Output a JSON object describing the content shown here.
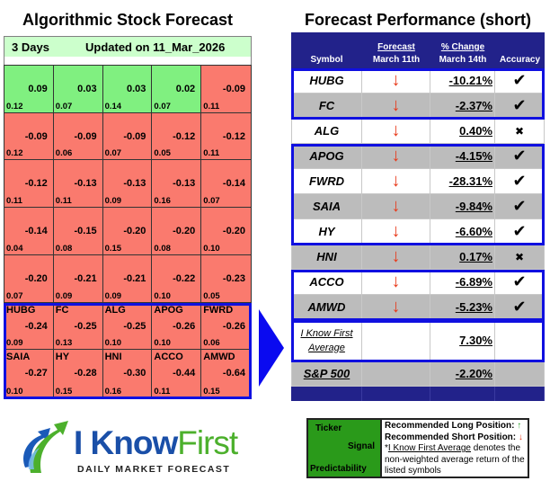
{
  "left_panel": {
    "title": "Algorithmic Stock Forecast",
    "horizon": "3 Days",
    "updated": "Updated on 11_Mar_2026",
    "cells": [
      {
        "ticker": "",
        "signal": "0.09",
        "pred": "0.12",
        "color": "pos"
      },
      {
        "ticker": "",
        "signal": "0.03",
        "pred": "0.07",
        "color": "pos"
      },
      {
        "ticker": "",
        "signal": "0.03",
        "pred": "0.14",
        "color": "pos"
      },
      {
        "ticker": "",
        "signal": "0.02",
        "pred": "0.07",
        "color": "pos"
      },
      {
        "ticker": "",
        "signal": "-0.09",
        "pred": "0.11",
        "color": "neg"
      },
      {
        "ticker": "",
        "signal": "-0.09",
        "pred": "0.12",
        "color": "neg"
      },
      {
        "ticker": "",
        "signal": "-0.09",
        "pred": "0.06",
        "color": "neg"
      },
      {
        "ticker": "",
        "signal": "-0.09",
        "pred": "0.07",
        "color": "neg"
      },
      {
        "ticker": "",
        "signal": "-0.12",
        "pred": "0.05",
        "color": "neg"
      },
      {
        "ticker": "",
        "signal": "-0.12",
        "pred": "0.11",
        "color": "neg"
      },
      {
        "ticker": "",
        "signal": "-0.12",
        "pred": "0.11",
        "color": "neg"
      },
      {
        "ticker": "",
        "signal": "-0.13",
        "pred": "0.11",
        "color": "neg"
      },
      {
        "ticker": "",
        "signal": "-0.13",
        "pred": "0.09",
        "color": "neg"
      },
      {
        "ticker": "",
        "signal": "-0.13",
        "pred": "0.16",
        "color": "neg"
      },
      {
        "ticker": "",
        "signal": "-0.14",
        "pred": "0.07",
        "color": "neg"
      },
      {
        "ticker": "",
        "signal": "-0.14",
        "pred": "0.04",
        "color": "neg"
      },
      {
        "ticker": "",
        "signal": "-0.15",
        "pred": "0.08",
        "color": "neg"
      },
      {
        "ticker": "",
        "signal": "-0.20",
        "pred": "0.15",
        "color": "neg"
      },
      {
        "ticker": "",
        "signal": "-0.20",
        "pred": "0.08",
        "color": "neg"
      },
      {
        "ticker": "",
        "signal": "-0.20",
        "pred": "0.10",
        "color": "neg"
      },
      {
        "ticker": "",
        "signal": "-0.20",
        "pred": "0.07",
        "color": "neg"
      },
      {
        "ticker": "",
        "signal": "-0.21",
        "pred": "0.09",
        "color": "neg"
      },
      {
        "ticker": "",
        "signal": "-0.21",
        "pred": "0.09",
        "color": "neg"
      },
      {
        "ticker": "",
        "signal": "-0.22",
        "pred": "0.10",
        "color": "neg"
      },
      {
        "ticker": "",
        "signal": "-0.23",
        "pred": "0.05",
        "color": "neg"
      },
      {
        "ticker": "HUBG",
        "signal": "-0.24",
        "pred": "0.09",
        "color": "neg"
      },
      {
        "ticker": "FC",
        "signal": "-0.25",
        "pred": "0.13",
        "color": "neg"
      },
      {
        "ticker": "ALG",
        "signal": "-0.25",
        "pred": "0.10",
        "color": "neg"
      },
      {
        "ticker": "APOG",
        "signal": "-0.26",
        "pred": "0.10",
        "color": "neg"
      },
      {
        "ticker": "FWRD",
        "signal": "-0.26",
        "pred": "0.06",
        "color": "neg"
      },
      {
        "ticker": "SAIA",
        "signal": "-0.27",
        "pred": "0.10",
        "color": "neg"
      },
      {
        "ticker": "HY",
        "signal": "-0.28",
        "pred": "0.15",
        "color": "neg"
      },
      {
        "ticker": "HNI",
        "signal": "-0.30",
        "pred": "0.16",
        "color": "neg"
      },
      {
        "ticker": "ACCO",
        "signal": "-0.44",
        "pred": "0.11",
        "color": "neg"
      },
      {
        "ticker": "AMWD",
        "signal": "-0.64",
        "pred": "0.15",
        "color": "neg"
      }
    ]
  },
  "right_panel": {
    "title": "Forecast Performance (short)",
    "headers": {
      "symbol": "Symbol",
      "forecast_top": "Forecast",
      "forecast_bottom": "March 11th",
      "change_top": "% Change",
      "change_bottom": "March 14th",
      "accuracy": "Accuracy"
    },
    "rows": [
      {
        "symbol": "HUBG",
        "forecast": "↓",
        "change": "-10.21%",
        "accuracy": "✔"
      },
      {
        "symbol": "FC",
        "forecast": "↓",
        "change": "-2.37%",
        "accuracy": "✔"
      },
      {
        "symbol": "ALG",
        "forecast": "↓",
        "change": "0.40%",
        "accuracy": "✖"
      },
      {
        "symbol": "APOG",
        "forecast": "↓",
        "change": "-4.15%",
        "accuracy": "✔"
      },
      {
        "symbol": "FWRD",
        "forecast": "↓",
        "change": "-28.31%",
        "accuracy": "✔"
      },
      {
        "symbol": "SAIA",
        "forecast": "↓",
        "change": "-9.84%",
        "accuracy": "✔"
      },
      {
        "symbol": "HY",
        "forecast": "↓",
        "change": "-6.60%",
        "accuracy": "✔"
      },
      {
        "symbol": "HNI",
        "forecast": "↓",
        "change": "0.17%",
        "accuracy": "✖"
      },
      {
        "symbol": "ACCO",
        "forecast": "↓",
        "change": "-6.89%",
        "accuracy": "✔"
      },
      {
        "symbol": "AMWD",
        "forecast": "↓",
        "change": "-5.23%",
        "accuracy": "✔"
      }
    ],
    "average": {
      "label_line1": "I Know First",
      "label_line2": "Average",
      "change": "7.30%"
    },
    "benchmark": {
      "label": "S&P 500",
      "change": "-2.20%"
    }
  },
  "logo": {
    "word_part1": "I Know",
    "word_part2": "First",
    "tagline": "DAILY MARKET FORECAST"
  },
  "legend": {
    "ticker": "Ticker",
    "signal": "Signal",
    "predictability": "Predictability",
    "long": "Recommended Long Position:",
    "short": "Recommended Short Position:",
    "up_arrow": "↑",
    "down_arrow": "↓",
    "note_star": "*",
    "note_link": "I Know First Average",
    "note_rest": " denotes the non-weighted average return of the listed symbols"
  },
  "colors": {
    "positive_cell": "#80f080",
    "negative_cell": "#fa7a6e",
    "header_navy": "#22228a",
    "highlight_blue": "#1010e0",
    "arrow_red": "#e83a1a"
  }
}
